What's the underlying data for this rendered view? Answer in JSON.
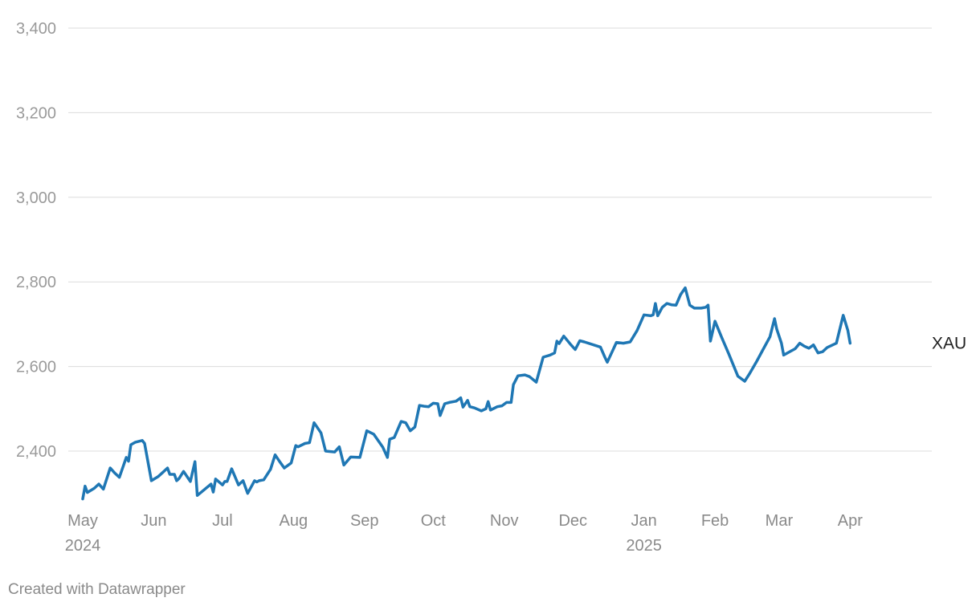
{
  "footer": {
    "credit": "Created with Datawrapper"
  },
  "chart_data": {
    "type": "line",
    "title": "",
    "xlabel": "",
    "ylabel": "",
    "x_range": [
      "2024-05-01",
      "2025-04-30"
    ],
    "ylim": [
      2260,
      3430
    ],
    "y_ticks": [
      2400,
      2600,
      2800,
      3000,
      3200,
      3400
    ],
    "y_tick_labels": [
      "2,400",
      "2,600",
      "2,800",
      "3,000",
      "3,200",
      "3,400"
    ],
    "x_ticks": [
      {
        "date": "2024-05-01",
        "label": "May",
        "sublabel": "2024"
      },
      {
        "date": "2024-06-01",
        "label": "Jun",
        "sublabel": ""
      },
      {
        "date": "2024-07-01",
        "label": "Jul",
        "sublabel": ""
      },
      {
        "date": "2024-08-01",
        "label": "Aug",
        "sublabel": ""
      },
      {
        "date": "2024-09-01",
        "label": "Sep",
        "sublabel": ""
      },
      {
        "date": "2024-10-01",
        "label": "Oct",
        "sublabel": ""
      },
      {
        "date": "2024-11-01",
        "label": "Nov",
        "sublabel": ""
      },
      {
        "date": "2024-12-01",
        "label": "Dec",
        "sublabel": ""
      },
      {
        "date": "2025-01-01",
        "label": "Jan",
        "sublabel": "2025"
      },
      {
        "date": "2025-02-01",
        "label": "Feb",
        "sublabel": ""
      },
      {
        "date": "2025-03-01",
        "label": "Mar",
        "sublabel": ""
      },
      {
        "date": "2025-04-01",
        "label": "Apr",
        "sublabel": ""
      }
    ],
    "grid": true,
    "colors": {
      "line": "#1f77b4",
      "grid": "#dcdcdc",
      "tick_text": "#9a9a9a",
      "label_text": "#222222"
    },
    "series": [
      {
        "name": "XAU",
        "points": [
          [
            "2024-05-01",
            2287
          ],
          [
            "2024-05-02",
            2317
          ],
          [
            "2024-05-03",
            2302
          ],
          [
            "2024-05-06",
            2312
          ],
          [
            "2024-05-08",
            2322
          ],
          [
            "2024-05-10",
            2310
          ],
          [
            "2024-05-13",
            2360
          ],
          [
            "2024-05-15",
            2348
          ],
          [
            "2024-05-17",
            2338
          ],
          [
            "2024-05-20",
            2385
          ],
          [
            "2024-05-21",
            2376
          ],
          [
            "2024-05-22",
            2415
          ],
          [
            "2024-05-24",
            2421
          ],
          [
            "2024-05-27",
            2425
          ],
          [
            "2024-05-28",
            2418
          ],
          [
            "2024-05-31",
            2330
          ],
          [
            "2024-06-03",
            2340
          ],
          [
            "2024-06-05",
            2350
          ],
          [
            "2024-06-07",
            2360
          ],
          [
            "2024-06-08",
            2345
          ],
          [
            "2024-06-10",
            2345
          ],
          [
            "2024-06-11",
            2330
          ],
          [
            "2024-06-12",
            2335
          ],
          [
            "2024-06-14",
            2352
          ],
          [
            "2024-06-17",
            2328
          ],
          [
            "2024-06-19",
            2375
          ],
          [
            "2024-06-20",
            2295
          ],
          [
            "2024-06-24",
            2313
          ],
          [
            "2024-06-26",
            2322
          ],
          [
            "2024-06-27",
            2303
          ],
          [
            "2024-06-28",
            2334
          ],
          [
            "2024-07-01",
            2320
          ],
          [
            "2024-07-02",
            2328
          ],
          [
            "2024-07-03",
            2328
          ],
          [
            "2024-07-05",
            2358
          ],
          [
            "2024-07-08",
            2320
          ],
          [
            "2024-07-10",
            2330
          ],
          [
            "2024-07-12",
            2300
          ],
          [
            "2024-07-15",
            2330
          ],
          [
            "2024-07-16",
            2327
          ],
          [
            "2024-07-17",
            2330
          ],
          [
            "2024-07-19",
            2332
          ],
          [
            "2024-07-22",
            2357
          ],
          [
            "2024-07-24",
            2391
          ],
          [
            "2024-07-26",
            2375
          ],
          [
            "2024-07-28",
            2360
          ],
          [
            "2024-07-31",
            2372
          ],
          [
            "2024-08-02",
            2413
          ],
          [
            "2024-08-03",
            2410
          ],
          [
            "2024-08-06",
            2418
          ],
          [
            "2024-08-08",
            2420
          ],
          [
            "2024-08-10",
            2467
          ],
          [
            "2024-08-13",
            2443
          ],
          [
            "2024-08-15",
            2400
          ],
          [
            "2024-08-19",
            2398
          ],
          [
            "2024-08-21",
            2410
          ],
          [
            "2024-08-23",
            2367
          ],
          [
            "2024-08-26",
            2386
          ],
          [
            "2024-08-30",
            2385
          ],
          [
            "2024-09-02",
            2448
          ],
          [
            "2024-09-05",
            2440
          ],
          [
            "2024-09-09",
            2409
          ],
          [
            "2024-09-11",
            2385
          ],
          [
            "2024-09-12",
            2428
          ],
          [
            "2024-09-14",
            2432
          ],
          [
            "2024-09-17",
            2470
          ],
          [
            "2024-09-19",
            2467
          ],
          [
            "2024-09-21",
            2448
          ],
          [
            "2024-09-23",
            2457
          ],
          [
            "2024-09-25",
            2508
          ],
          [
            "2024-09-27",
            2506
          ],
          [
            "2024-09-29",
            2505
          ],
          [
            "2024-10-01",
            2513
          ],
          [
            "2024-10-03",
            2512
          ],
          [
            "2024-10-04",
            2484
          ],
          [
            "2024-10-06",
            2512
          ],
          [
            "2024-10-08",
            2515
          ],
          [
            "2024-10-11",
            2518
          ],
          [
            "2024-10-13",
            2526
          ],
          [
            "2024-10-14",
            2504
          ],
          [
            "2024-10-16",
            2520
          ],
          [
            "2024-10-17",
            2505
          ],
          [
            "2024-10-19",
            2502
          ],
          [
            "2024-10-22",
            2495
          ],
          [
            "2024-10-24",
            2500
          ],
          [
            "2024-10-25",
            2517
          ],
          [
            "2024-10-26",
            2497
          ],
          [
            "2024-10-29",
            2505
          ],
          [
            "2024-10-31",
            2507
          ],
          [
            "2024-11-02",
            2515
          ],
          [
            "2024-11-04",
            2515
          ],
          [
            "2024-11-05",
            2557
          ],
          [
            "2024-11-07",
            2578
          ],
          [
            "2024-11-10",
            2580
          ],
          [
            "2024-11-12",
            2576
          ],
          [
            "2024-11-15",
            2563
          ],
          [
            "2024-11-18",
            2622
          ],
          [
            "2024-11-21",
            2627
          ],
          [
            "2024-11-23",
            2632
          ],
          [
            "2024-11-24",
            2660
          ],
          [
            "2024-11-25",
            2654
          ],
          [
            "2024-11-27",
            2672
          ],
          [
            "2024-11-30",
            2652
          ],
          [
            "2024-12-02",
            2640
          ],
          [
            "2024-12-04",
            2661
          ],
          [
            "2024-12-06",
            2658
          ],
          [
            "2024-12-13",
            2646
          ],
          [
            "2024-12-15",
            2621
          ],
          [
            "2024-12-16",
            2610
          ],
          [
            "2024-12-20",
            2657
          ],
          [
            "2024-12-23",
            2655
          ],
          [
            "2024-12-26",
            2658
          ],
          [
            "2024-12-29",
            2685
          ],
          [
            "2025-01-01",
            2722
          ],
          [
            "2025-01-04",
            2720
          ],
          [
            "2025-01-05",
            2722
          ],
          [
            "2025-01-06",
            2749
          ],
          [
            "2025-01-07",
            2720
          ],
          [
            "2025-01-09",
            2740
          ],
          [
            "2025-01-11",
            2749
          ],
          [
            "2025-01-13",
            2746
          ],
          [
            "2025-01-15",
            2745
          ],
          [
            "2025-01-17",
            2770
          ],
          [
            "2025-01-19",
            2786
          ],
          [
            "2025-01-21",
            2745
          ],
          [
            "2025-01-23",
            2738
          ],
          [
            "2025-01-26",
            2738
          ],
          [
            "2025-01-28",
            2740
          ],
          [
            "2025-01-29",
            2745
          ],
          [
            "2025-01-30",
            2660
          ],
          [
            "2025-02-01",
            2707
          ],
          [
            "2025-02-04",
            2668
          ],
          [
            "2025-02-07",
            2630
          ],
          [
            "2025-02-11",
            2577
          ],
          [
            "2025-02-14",
            2565
          ],
          [
            "2025-02-16",
            2582
          ],
          [
            "2025-02-19",
            2610
          ],
          [
            "2025-02-22",
            2640
          ],
          [
            "2025-02-25",
            2670
          ],
          [
            "2025-02-27",
            2713
          ],
          [
            "2025-02-28",
            2688
          ],
          [
            "2025-03-02",
            2655
          ],
          [
            "2025-03-03",
            2627
          ],
          [
            "2025-03-06",
            2636
          ],
          [
            "2025-03-08",
            2642
          ],
          [
            "2025-03-10",
            2655
          ],
          [
            "2025-03-12",
            2648
          ],
          [
            "2025-03-14",
            2643
          ],
          [
            "2025-03-16",
            2651
          ],
          [
            "2025-03-18",
            2632
          ],
          [
            "2025-03-20",
            2635
          ],
          [
            "2025-03-22",
            2645
          ],
          [
            "2025-03-26",
            2655
          ],
          [
            "2025-03-29",
            2721
          ],
          [
            "2025-03-31",
            2685
          ],
          [
            "2025-04-01",
            2655
          ]
        ]
      }
    ]
  }
}
